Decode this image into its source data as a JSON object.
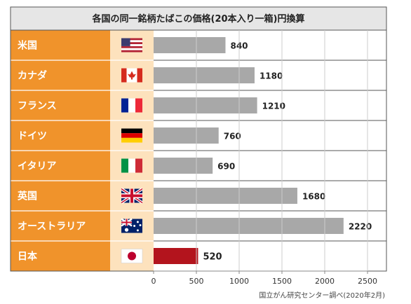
{
  "title": "各国の同一銘柄たばこの価格(20本入り一箱)円換算",
  "source": "国立がん研究センター調べ(2020年2月)",
  "colors": {
    "header_bg": "#e6e6e6",
    "label_bg": "#f0932b",
    "flag_bg": "#fde2bd",
    "bar_gray": "#a8a8a8",
    "bar_highlight": "#b3141d",
    "border": "#555555"
  },
  "chart_data": {
    "type": "bar",
    "orientation": "horizontal",
    "title": "各国の同一銘柄たばこの価格(20本入り一箱)円換算",
    "categories": [
      "米国",
      "カナダ",
      "フランス",
      "ドイツ",
      "イタリア",
      "英国",
      "オーストラリア",
      "日本"
    ],
    "flags": [
      "us-flag-icon",
      "canada-flag-icon",
      "france-flag-icon",
      "germany-flag-icon",
      "italy-flag-icon",
      "uk-flag-icon",
      "australia-flag-icon",
      "japan-flag-icon"
    ],
    "values": [
      840,
      1180,
      1210,
      760,
      690,
      1680,
      2220,
      520
    ],
    "highlight_index": 7,
    "xlim": [
      0,
      2500
    ],
    "xticks": [
      "0",
      "500",
      "1000",
      "1500",
      "2000",
      "2500"
    ],
    "xlabel": "",
    "ylabel": "",
    "grid": true
  }
}
